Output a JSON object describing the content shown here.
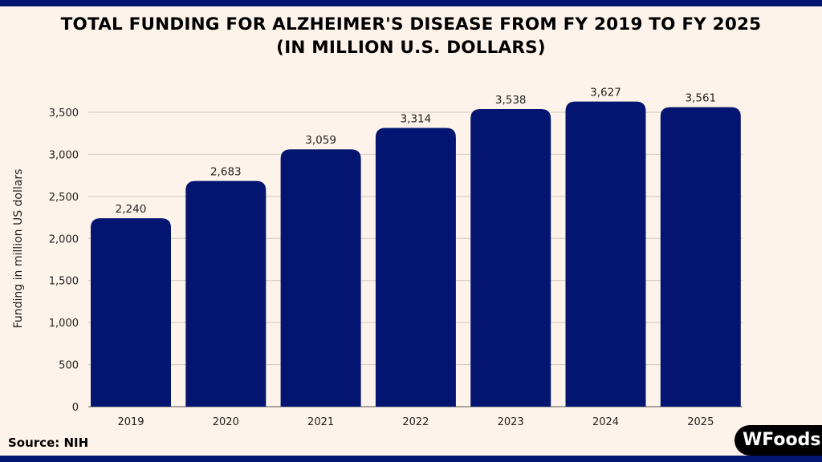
{
  "chart_data": {
    "type": "bar",
    "title": "TOTAL FUNDING FOR ALZHEIMER'S DISEASE FROM FY 2019 TO FY 2025",
    "subtitle": "(IN MILLION U.S. DOLLARS)",
    "categories": [
      "2019",
      "2020",
      "2021",
      "2022",
      "2023",
      "2024",
      "2025"
    ],
    "values": [
      2240,
      2683,
      3059,
      3314,
      3538,
      3627,
      3561
    ],
    "data_labels": [
      "2,240",
      "2,683",
      "3,059",
      "3,314",
      "3,538",
      "3,627",
      "3,561"
    ],
    "xlabel": "",
    "ylabel": "Funding in million US dollars",
    "ylim": [
      0,
      3500
    ],
    "yticks": [
      0,
      500,
      1000,
      1500,
      2000,
      2500,
      3000,
      3500
    ],
    "ytick_labels": [
      "0",
      "500",
      "1,000",
      "1,500",
      "2,000",
      "2,500",
      "3,000",
      "3,500"
    ],
    "grid": true,
    "bar_color": "#031570"
  },
  "source": "Source: NIH",
  "logo": "WFoods",
  "colors": {
    "background": "#fdf3ea",
    "accent": "#031570"
  }
}
